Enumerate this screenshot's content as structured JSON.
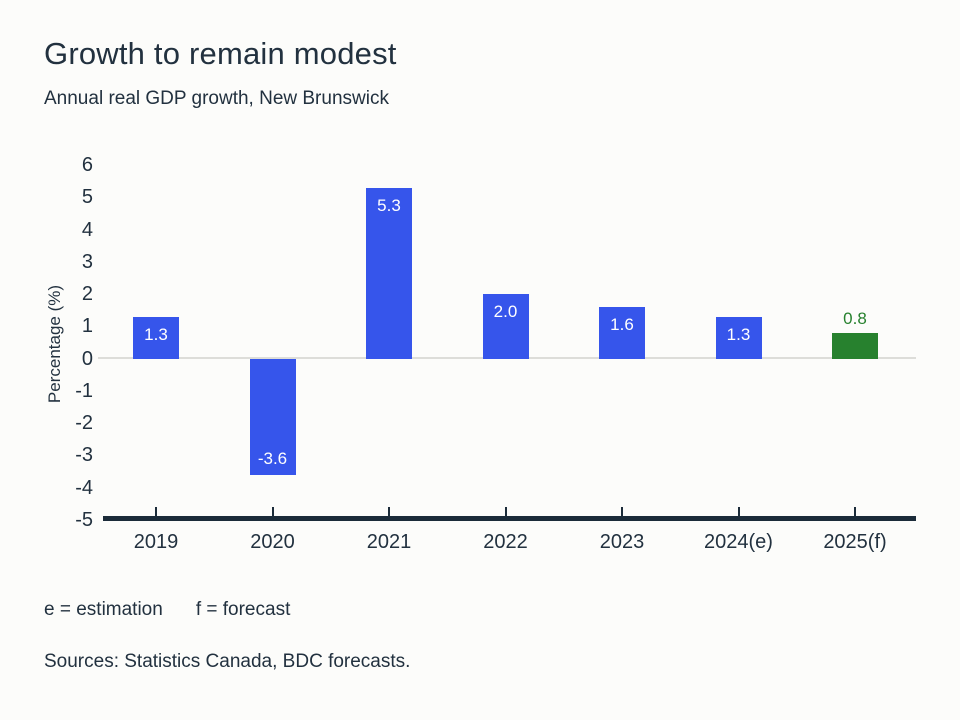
{
  "header": {
    "title": "Growth to remain modest",
    "subtitle": "Annual real GDP growth, New Brunswick"
  },
  "chart_data": {
    "type": "bar",
    "title": "Growth to remain modest",
    "subtitle": "Annual real GDP growth, New Brunswick",
    "xlabel": "",
    "ylabel": "Percentage (%)",
    "ylim": [
      -5,
      6
    ],
    "yticks": [
      6,
      5,
      4,
      3,
      2,
      1,
      0,
      -1,
      -2,
      -3,
      -4,
      -5
    ],
    "grid": "zero-baseline-only",
    "legend": "none",
    "categories": [
      "2019",
      "2020",
      "2021",
      "2022",
      "2023",
      "2024(e)",
      "2025(f)"
    ],
    "values": [
      1.3,
      -3.6,
      5.3,
      2.0,
      1.6,
      1.3,
      0.8
    ],
    "bar_labels": [
      "1.3",
      "-3.6",
      "5.3",
      "2.0",
      "1.6",
      "1.3",
      "0.8"
    ],
    "bar_label_placement": [
      "inside-top",
      "inside-bottom",
      "inside-top",
      "inside-top",
      "inside-top",
      "inside-top",
      "above"
    ],
    "bar_colors": [
      "#3655EB",
      "#3655EB",
      "#3655EB",
      "#3655EB",
      "#3655EB",
      "#3655EB",
      "#27812E"
    ]
  },
  "colors": {
    "page_bg": "#FCFCFA",
    "text_dark": "#22313F",
    "accent_blue": "#3655EB",
    "forecast_green": "#27812E",
    "axis_line": "#1B2B39",
    "zero_line": "#DDDDD9",
    "bar_label_light": "#FFFFFF"
  },
  "footnotes": {
    "estimation": "e = estimation",
    "forecast": "f = forecast"
  },
  "sources": "Sources: Statistics Canada, BDC forecasts."
}
